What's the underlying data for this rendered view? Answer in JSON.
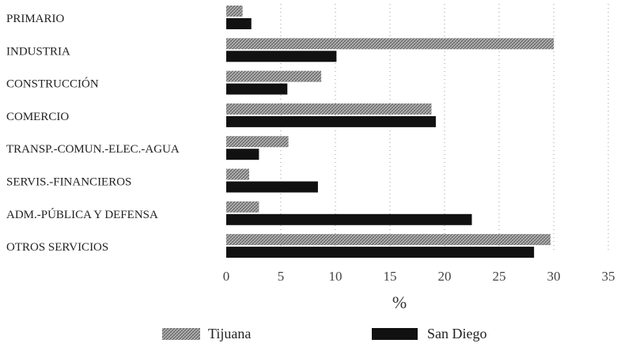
{
  "chart_data": {
    "type": "bar",
    "orientation": "horizontal",
    "categories": [
      "PRIMARIO",
      "INDUSTRIA",
      "CONSTRUCCIÓN",
      "COMERCIO",
      "TRANSP.-COMUN.-ELEC.-AGUA",
      "SERVIS.-FINANCIEROS",
      "ADM.-PÚBLICA Y DEFENSA",
      "OTROS SERVICIOS"
    ],
    "series": [
      {
        "name": "Tijuana",
        "color": "#9a9a9a",
        "pattern": "crosshatch",
        "values": [
          1.5,
          30.0,
          8.7,
          18.8,
          5.7,
          2.1,
          3.0,
          29.7
        ]
      },
      {
        "name": "San Diego",
        "color": "#111111",
        "pattern": "solid",
        "values": [
          2.3,
          10.1,
          5.6,
          19.2,
          3.0,
          8.4,
          22.5,
          28.2
        ]
      }
    ],
    "xlabel": "%",
    "ylabel": "",
    "xlim": [
      0,
      35
    ],
    "xticks": [
      0,
      5,
      10,
      15,
      20,
      25,
      30,
      35
    ],
    "grid": "vertical dotted",
    "legend": "bottom"
  }
}
